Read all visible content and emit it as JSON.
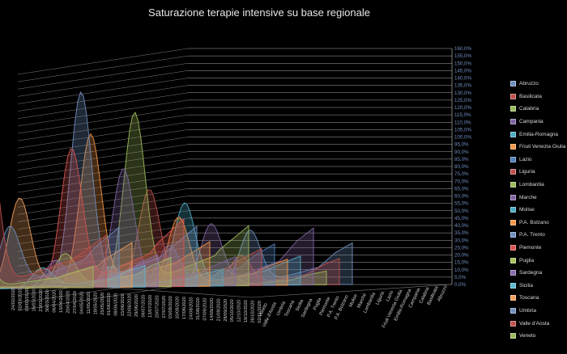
{
  "chart_data": {
    "type": "area",
    "title": "Saturazione terapie intensive su base regionale",
    "y_axis": {
      "min": 0,
      "max": 160,
      "step": 5,
      "tick_labels": [
        "0,0%",
        "5,0%",
        "10,0%",
        "15,0%",
        "20,0%",
        "25,0%",
        "30,0%",
        "35,0%",
        "40,0%",
        "45,0%",
        "50,0%",
        "55,0%",
        "60,0%",
        "65,0%",
        "70,0%",
        "75,0%",
        "80,0%",
        "85,0%",
        "90,0%",
        "95,0%",
        "100,0%",
        "105,0%",
        "110,0%",
        "115,0%",
        "120,0%",
        "125,0%",
        "130,0%",
        "135,0%",
        "140,0%",
        "145,0%",
        "150,0%",
        "155,0%",
        "160,0%"
      ]
    },
    "x_tick_labels": [
      "02/11/2020",
      "26/10/2020",
      "19/10/2020",
      "12/10/2020",
      "05/10/2020",
      "28/09/2020",
      "21/09/2020",
      "14/09/2020",
      "07/09/2020",
      "31/08/2020",
      "24/08/2020",
      "17/08/2020",
      "10/08/2020",
      "03/08/2020",
      "27/07/2020",
      "20/07/2020",
      "13/07/2020",
      "06/07/2020",
      "29/06/2020",
      "22/06/2020",
      "15/06/2020",
      "08/06/2020",
      "01/06/2020",
      "25/05/2020",
      "18/05/2020",
      "11/05/2020",
      "04/05/2020",
      "27/04/2020",
      "20/04/2020",
      "13/04/2020",
      "06/04/2020",
      "30/03/2020",
      "23/03/2020",
      "16/03/2020",
      "09/03/2020",
      "02/03/2020",
      "24/02/2020"
    ],
    "depth_labels": [
      "Veneto",
      "Valle d'Aosta",
      "Umbria",
      "Toscana",
      "Sicilia",
      "Sardegna",
      "Puglia",
      "Piemonte",
      "P.A. Trento",
      "P.A. Bolzano",
      "Molise",
      "Marche",
      "Lombardia",
      "Liguria",
      "Lazio",
      "Friuli Venezia Giulia",
      "Emilia-Romagna",
      "Campania",
      "Calabria",
      "Basilicata",
      "Abruzzo"
    ],
    "legend_position": "right",
    "series": [
      {
        "name": "Abruzzo",
        "color": "#6f8fc0",
        "peak": 40,
        "peak_pos": 0.4,
        "end": 28
      },
      {
        "name": "Basilicata",
        "color": "#c0504d",
        "peak": 22,
        "peak_pos": 0.42,
        "end": 18
      },
      {
        "name": "Calabria",
        "color": "#9bbb59",
        "peak": 12,
        "peak_pos": 0.4,
        "end": 10
      },
      {
        "name": "Campania",
        "color": "#8064a2",
        "peak": 45,
        "peak_pos": 0.4,
        "end": 38
      },
      {
        "name": "Emilia-Romagna",
        "color": "#4bacc6",
        "peak": 60,
        "peak_pos": 0.32,
        "end": 20
      },
      {
        "name": "Friuli Venezia Giulia",
        "color": "#f79646",
        "peak": 50,
        "peak_pos": 0.36,
        "end": 18
      },
      {
        "name": "Lazio",
        "color": "#4f81bd",
        "peak": 30,
        "peak_pos": 0.38,
        "end": 28
      },
      {
        "name": "Liguria",
        "color": "#c0504d",
        "peak": 70,
        "peak_pos": 0.34,
        "end": 25
      },
      {
        "name": "Lombardia",
        "color": "#9bbb59",
        "peak": 125,
        "peak_pos": 0.33,
        "end": 40
      },
      {
        "name": "Marche",
        "color": "#8064a2",
        "peak": 85,
        "peak_pos": 0.34,
        "end": 20
      },
      {
        "name": "Molise",
        "color": "#4bacc6",
        "peak": 15,
        "peak_pos": 0.35,
        "end": 12
      },
      {
        "name": "P.A. Bolzano",
        "color": "#f79646",
        "peak": 110,
        "peak_pos": 0.3,
        "end": 30
      },
      {
        "name": "P.A. Trento",
        "color": "#6f8fc0",
        "peak": 140,
        "peak_pos": 0.32,
        "end": 40
      },
      {
        "name": "Piemonte",
        "color": "#d9534f",
        "peak": 100,
        "peak_pos": 0.34,
        "end": 45
      },
      {
        "name": "Puglia",
        "color": "#a6c35b",
        "peak": 25,
        "peak_pos": 0.38,
        "end": 20
      },
      {
        "name": "Sardegna",
        "color": "#8a6bb0",
        "peak": 20,
        "peak_pos": 0.4,
        "end": 22
      },
      {
        "name": "Sicilia",
        "color": "#5bb9d0",
        "peak": 15,
        "peak_pos": 0.4,
        "end": 15
      },
      {
        "name": "Toscana",
        "color": "#f2a05c",
        "peak": 65,
        "peak_pos": 0.34,
        "end": 30
      },
      {
        "name": "Umbria",
        "color": "#6f8fc0",
        "peak": 45,
        "peak_pos": 0.36,
        "end": 40
      },
      {
        "name": "Valle d'Aosta",
        "color": "#c0504d",
        "peak": 120,
        "peak_pos": 0.3,
        "end": 35
      },
      {
        "name": "Veneto",
        "color": "#9bbb59",
        "peak": 45,
        "peak_pos": 0.32,
        "end": 15
      }
    ]
  }
}
